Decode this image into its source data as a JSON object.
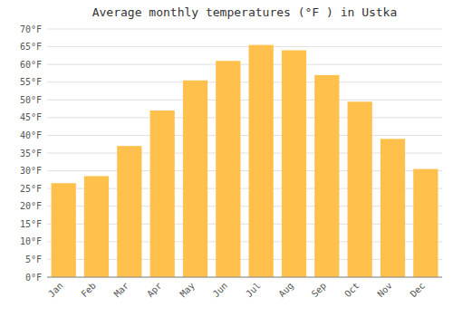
{
  "chart_data": {
    "type": "bar",
    "title": "Average monthly temperatures (°F ) in Ustka",
    "categories": [
      "Jan",
      "Feb",
      "Mar",
      "Apr",
      "May",
      "Jun",
      "Jul",
      "Aug",
      "Sep",
      "Oct",
      "Nov",
      "Dec"
    ],
    "values": [
      26.5,
      28.5,
      37,
      47,
      55.5,
      61,
      65.5,
      64,
      57,
      49.5,
      39,
      30.5
    ],
    "color": "#FFC04C",
    "ylim": [
      0,
      70
    ],
    "yticks": [
      {
        "value": 0,
        "label": "0°F"
      },
      {
        "value": 5,
        "label": "5°F"
      },
      {
        "value": 10,
        "label": "10°F"
      },
      {
        "value": 15,
        "label": "15°F"
      },
      {
        "value": 20,
        "label": "20°F"
      },
      {
        "value": 25,
        "label": "25°F"
      },
      {
        "value": 30,
        "label": "30°F"
      },
      {
        "value": 35,
        "label": "35°F"
      },
      {
        "value": 40,
        "label": "40°F"
      },
      {
        "value": 45,
        "label": "45°F"
      },
      {
        "value": 50,
        "label": "50°F"
      },
      {
        "value": 55,
        "label": "55°F"
      },
      {
        "value": 60,
        "label": "60°F"
      },
      {
        "value": 65,
        "label": "65°F"
      },
      {
        "value": 70,
        "label": "70°F"
      }
    ],
    "grid": true
  }
}
